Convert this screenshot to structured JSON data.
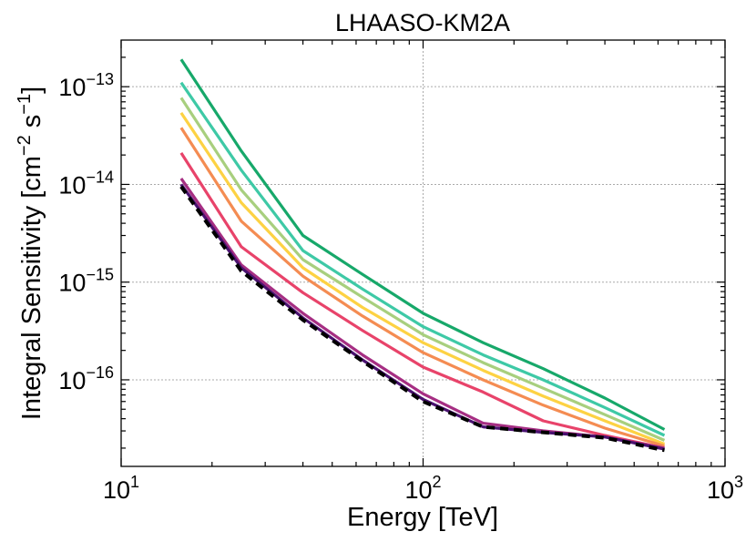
{
  "chart_data": {
    "type": "line",
    "title": "LHAASO-KM2A",
    "xlabel": "Energy [TeV]",
    "ylabel": "Integral Sensitivity [cm",
    "ylabel_unit1": "−2",
    "ylabel_unit_mid": " s",
    "ylabel_unit2": "−1",
    "ylabel_close": "]",
    "xscale": "log",
    "yscale": "log",
    "xlim": [
      10,
      1000
    ],
    "ylim": [
      1.3e-17,
      3e-13
    ],
    "grid": true,
    "x_ticks": [
      {
        "value": 10,
        "base": "10",
        "exp": "1"
      },
      {
        "value": 100,
        "base": "10",
        "exp": "2"
      },
      {
        "value": 1000,
        "base": "10",
        "exp": "3"
      }
    ],
    "y_ticks": [
      {
        "value": 1e-16,
        "base": "10",
        "exp": "−16"
      },
      {
        "value": 1e-15,
        "base": "10",
        "exp": "−15"
      },
      {
        "value": 1e-14,
        "base": "10",
        "exp": "−14"
      },
      {
        "value": 1e-13,
        "base": "10",
        "exp": "−13"
      }
    ],
    "x": [
      15.8,
      25,
      40,
      63,
      100,
      158,
      250,
      400,
      630
    ],
    "series": [
      {
        "color": "#17a86a",
        "dashed": false,
        "values": [
          1.9e-13,
          2.2e-14,
          3e-15,
          1.2e-15,
          4.8e-16,
          2.4e-16,
          1.3e-16,
          6.5e-17,
          3.1e-17
        ]
      },
      {
        "color": "#3ec9a6",
        "dashed": false,
        "values": [
          1.1e-13,
          1.4e-14,
          2.1e-15,
          8.5e-16,
          3.5e-16,
          1.8e-16,
          1e-16,
          5.2e-17,
          2.7e-17
        ]
      },
      {
        "color": "#a8cf7e",
        "dashed": false,
        "values": [
          7.7e-14,
          8.8e-15,
          1.7e-15,
          7e-16,
          2.9e-16,
          1.5e-16,
          8.2e-17,
          4.4e-17,
          2.4e-17
        ]
      },
      {
        "color": "#fdd243",
        "dashed": false,
        "values": [
          5.4e-14,
          6.5e-15,
          1.4e-15,
          5.5e-16,
          2.4e-16,
          1.25e-16,
          6.8e-17,
          3.8e-17,
          2.2e-17
        ]
      },
      {
        "color": "#f48c52",
        "dashed": false,
        "values": [
          3.8e-14,
          4.2e-15,
          1.15e-15,
          4.5e-16,
          1.9e-16,
          1e-16,
          5.5e-17,
          3.2e-17,
          2.1e-17
        ]
      },
      {
        "color": "#e8436a",
        "dashed": false,
        "values": [
          2.1e-14,
          2.3e-15,
          7.8e-16,
          3.2e-16,
          1.35e-16,
          7.5e-17,
          3.8e-17,
          2.7e-17,
          2e-17
        ]
      },
      {
        "color": "#a62e83",
        "dashed": false,
        "values": [
          1.15e-14,
          1.5e-15,
          4.8e-16,
          1.8e-16,
          7.2e-17,
          3.6e-17,
          3e-17,
          2.6e-17,
          2e-17
        ]
      },
      {
        "color": "#4a1270",
        "dashed": false,
        "values": [
          1e-14,
          1.4e-15,
          4.3e-16,
          1.6e-16,
          6.3e-17,
          3.3e-17,
          2.9e-17,
          2.6e-17,
          1.95e-17
        ]
      },
      {
        "color": "#000000",
        "dashed": true,
        "values": [
          9.5e-15,
          1.3e-15,
          4.1e-16,
          1.55e-16,
          6e-17,
          3.3e-17,
          2.9e-17,
          2.55e-17,
          1.9e-17
        ]
      }
    ]
  }
}
